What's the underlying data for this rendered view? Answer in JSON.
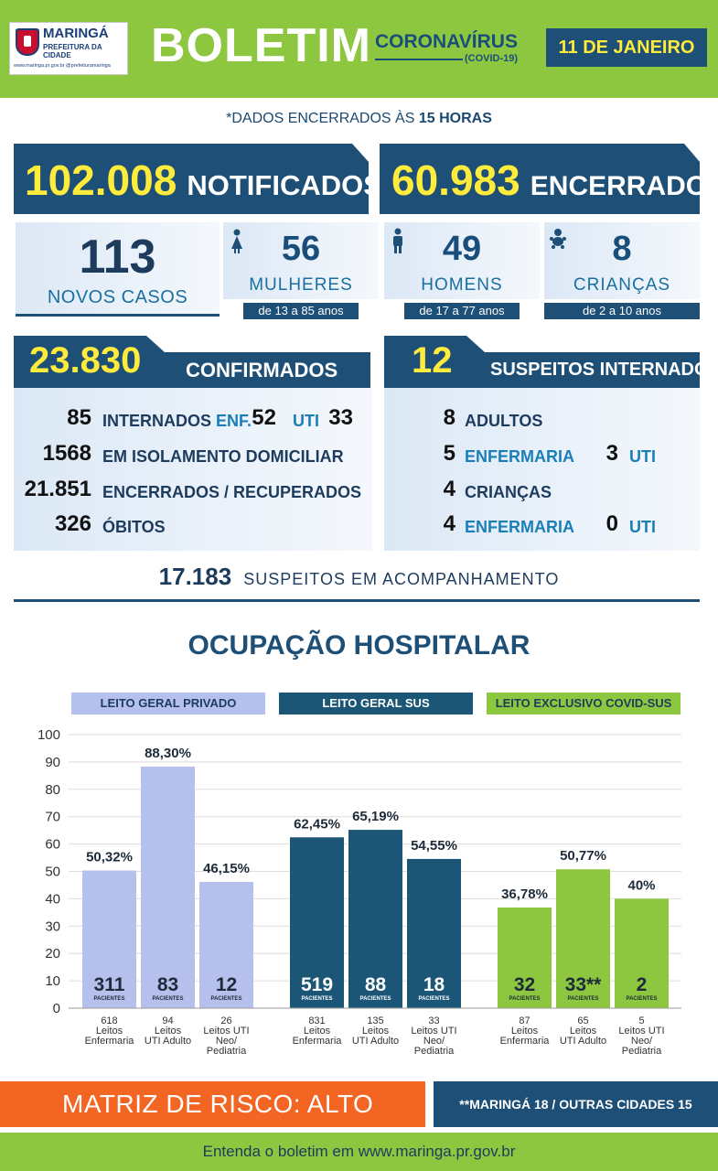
{
  "header": {
    "logo_city": "MARINGÁ",
    "logo_sub": "PREFEITURA DA CIDADE",
    "logo_web": "www.maringa.pr.gov.br  @prefeituramaringa",
    "title": "BOLETIM",
    "subtitle": "CORONAVÍRUS",
    "subtitle_small": "(COVID-19)",
    "date": "11 DE JANEIRO"
  },
  "note": {
    "prefix": "*DADOS ENCERRADOS ÀS ",
    "hour": "15 HORAS"
  },
  "notificados": {
    "value": "102.008",
    "label": "NOTIFICADOS"
  },
  "encerrados": {
    "value": "60.983",
    "label": "ENCERRADOS"
  },
  "novos_casos": {
    "value": "113",
    "label": "NOVOS CASOS"
  },
  "mulheres": {
    "value": "56",
    "label": "MULHERES",
    "ages": "de 13 a 85 anos",
    "icon": "woman-icon"
  },
  "homens": {
    "value": "49",
    "label": "HOMENS",
    "ages": "de 17 a 77 anos",
    "icon": "man-icon"
  },
  "criancas": {
    "value": "8",
    "label": "CRIANÇAS",
    "ages": "de  2 a 10 anos",
    "icon": "baby-icon"
  },
  "confirmados": {
    "value": "23.830",
    "label": "CONFIRMADOS",
    "rows": [
      {
        "num": "85",
        "label": "INTERNADOS",
        "enf_label": "ENF.",
        "enf": "52",
        "uti_label": "UTI",
        "uti": "33"
      },
      {
        "num": "1568",
        "label": "EM ISOLAMENTO DOMICILIAR"
      },
      {
        "num": "21.851",
        "label": "ENCERRADOS / RECUPERADOS"
      },
      {
        "num": "326",
        "label": "ÓBITOS"
      }
    ]
  },
  "suspeitos": {
    "value": "12",
    "label": "SUSPEITOS INTERNADOS",
    "rows": [
      {
        "num": "8",
        "label": "ADULTOS"
      },
      {
        "num": "5",
        "label": "ENFERMARIA",
        "uti": "3",
        "uti_label": "UTI"
      },
      {
        "num": "4",
        "label": "CRIANÇAS"
      },
      {
        "num": "4",
        "label": "ENFERMARIA",
        "uti": "0",
        "uti_label": "UTI"
      }
    ]
  },
  "acompanhamento": {
    "value": "17.183",
    "label": "SUSPEITOS EM ACOMPANHAMENTO"
  },
  "ocupacao_title": "OCUPAÇÃO HOSPITALAR",
  "chart_data": {
    "type": "bar",
    "ylim": [
      0,
      100
    ],
    "yticks": [
      0,
      10,
      20,
      30,
      40,
      50,
      60,
      70,
      80,
      90,
      100
    ],
    "grid": true,
    "groups": [
      {
        "name": "LEITO GERAL PRIVADO",
        "color": "#b6c0ec",
        "header_bg": "#b6c0ec",
        "header_fg": "#1d3b5c",
        "bars": [
          {
            "value": 50.32,
            "label": "50,32%",
            "pacientes": "311",
            "leitos": "618",
            "category": "Leitos Enfermaria"
          },
          {
            "value": 88.3,
            "label": "88,30%",
            "pacientes": "83",
            "leitos": "94",
            "category": "Leitos UTI Adulto"
          },
          {
            "value": 46.15,
            "label": "46,15%",
            "pacientes": "12",
            "leitos": "26",
            "category": "Leitos UTI Neo/ Pediatria"
          }
        ]
      },
      {
        "name": "LEITO GERAL SUS",
        "color": "#1b5676",
        "header_bg": "#1b5676",
        "header_fg": "#ffffff",
        "bars": [
          {
            "value": 62.45,
            "label": "62,45%",
            "pacientes": "519",
            "leitos": "831",
            "category": "Leitos Enfermaria"
          },
          {
            "value": 65.19,
            "label": "65,19%",
            "pacientes": "88",
            "leitos": "135",
            "category": "Leitos UTI Adulto"
          },
          {
            "value": 54.55,
            "label": "54,55%",
            "pacientes": "18",
            "leitos": "33",
            "category": "Leitos UTI Neo/ Pediatria"
          }
        ]
      },
      {
        "name": "LEITO EXCLUSIVO COVID-SUS",
        "color": "#8dc63f",
        "header_bg": "#8dc63f",
        "header_fg": "#1d3b5c",
        "bars": [
          {
            "value": 36.78,
            "label": "36,78%",
            "pacientes": "32",
            "leitos": "87",
            "category": "Leitos Enfermaria"
          },
          {
            "value": 50.77,
            "label": "50,77%",
            "pacientes": "33**",
            "leitos": "65",
            "category": "Leitos UTI Adulto"
          },
          {
            "value": 40,
            "label": "40%",
            "pacientes": "2",
            "leitos": "5",
            "category": "Leitos UTI Neo/ Pediatria"
          }
        ]
      }
    ],
    "pacientes_label": "PACIENTES"
  },
  "risco": {
    "label": "MATRIZ DE RISCO: ALTO"
  },
  "cidades": {
    "label": "**MARINGÁ 18 / OUTRAS CIDADES 15"
  },
  "footer": {
    "text": "Entenda o boletim em www.maringa.pr.gov.br"
  }
}
